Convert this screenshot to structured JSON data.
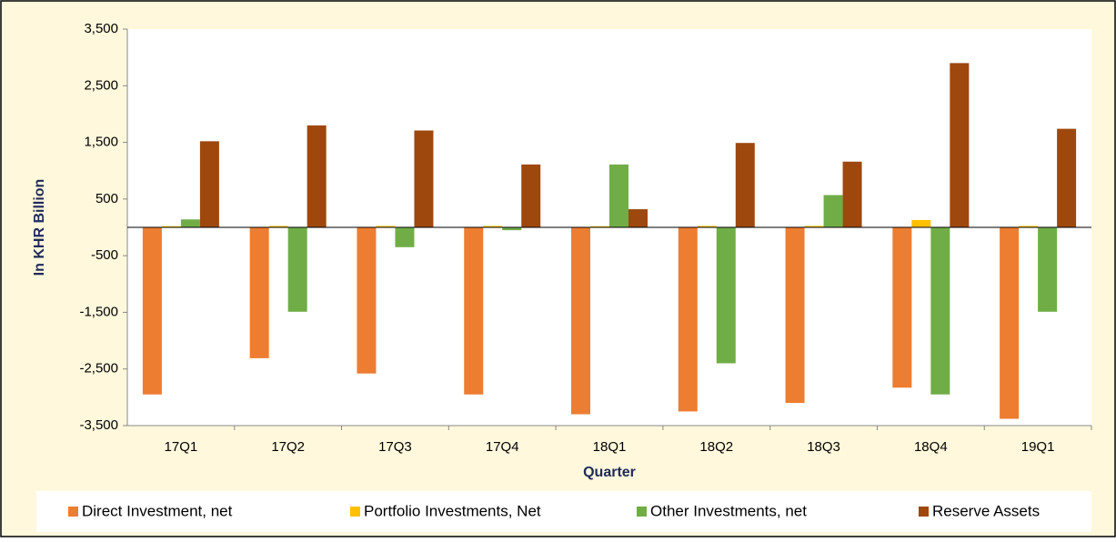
{
  "chart_data": {
    "type": "bar",
    "x_label": "Quarter",
    "y_label": "In KHR Billion",
    "categories": [
      "17Q1",
      "17Q2",
      "17Q3",
      "17Q4",
      "18Q1",
      "18Q2",
      "18Q3",
      "18Q4",
      "19Q1"
    ],
    "series": [
      {
        "name": "Direct Investment, net",
        "color": "#ed7d31",
        "values": [
          -2950,
          -2310,
          -2580,
          -2950,
          -3300,
          -3250,
          -3100,
          -2830,
          -3380
        ]
      },
      {
        "name": "Portfolio Investments, Net",
        "color": "#ffc000",
        "values": [
          20,
          25,
          25,
          25,
          20,
          25,
          25,
          130,
          25
        ]
      },
      {
        "name": "Other Investments, net",
        "color": "#70ad47",
        "values": [
          140,
          -1490,
          -350,
          -50,
          1110,
          -2400,
          570,
          -2950,
          -1490
        ]
      },
      {
        "name": "Reserve Assets",
        "color": "#9e480e",
        "values": [
          1520,
          1800,
          1710,
          1110,
          320,
          1490,
          1160,
          2900,
          1740
        ]
      }
    ],
    "ylim": [
      -3500,
      3500
    ],
    "yticks": [
      {
        "value": -3500,
        "label": "-3,500"
      },
      {
        "value": -2500,
        "label": "-2,500"
      },
      {
        "value": -1500,
        "label": "-1,500"
      },
      -500,
      500,
      {
        "value": 1500,
        "label": "1,500"
      },
      {
        "value": 2500,
        "label": "2,500"
      },
      {
        "value": 3500,
        "label": "3,500"
      }
    ],
    "grid": false,
    "legend": "bottom"
  }
}
